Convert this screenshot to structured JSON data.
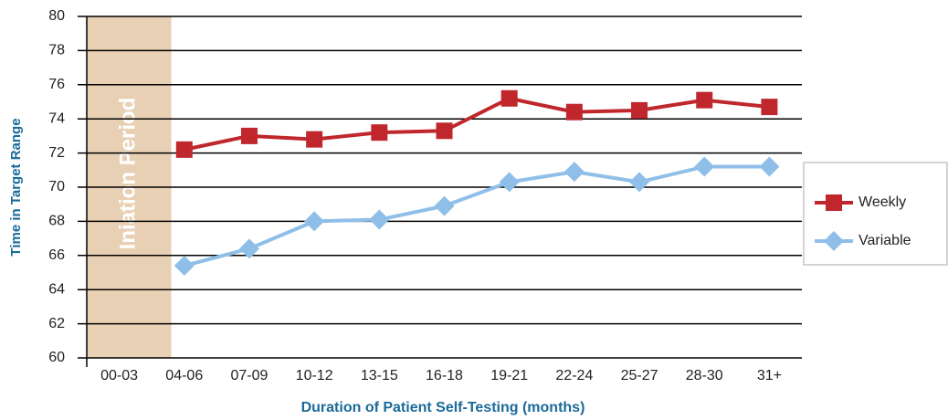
{
  "chart_data": {
    "type": "line",
    "y_label": "Time in Target Range",
    "x_label": "Duration of Patient Self-Testing (months)",
    "annotation": "Iniation Period",
    "categories": [
      "00-03",
      "04-06",
      "07-09",
      "10-12",
      "13-15",
      "16-18",
      "19-21",
      "22-24",
      "25-27",
      "28-30",
      "31+"
    ],
    "series": [
      {
        "name": "Weekly",
        "color": "#c0272d",
        "marker": "square",
        "values": [
          null,
          72.2,
          73.0,
          72.8,
          73.2,
          73.3,
          75.2,
          74.4,
          74.5,
          75.1,
          74.7
        ]
      },
      {
        "name": "Variable",
        "color": "#8fbfe8",
        "marker": "diamond",
        "values": [
          null,
          65.4,
          66.4,
          68.0,
          68.1,
          68.9,
          70.3,
          70.9,
          70.3,
          71.2,
          71.2
        ]
      }
    ],
    "ylim": [
      60,
      80
    ],
    "yticks": [
      60,
      62,
      64,
      66,
      68,
      70,
      72,
      74,
      76,
      78,
      80
    ],
    "grid": true,
    "legend": "right"
  }
}
